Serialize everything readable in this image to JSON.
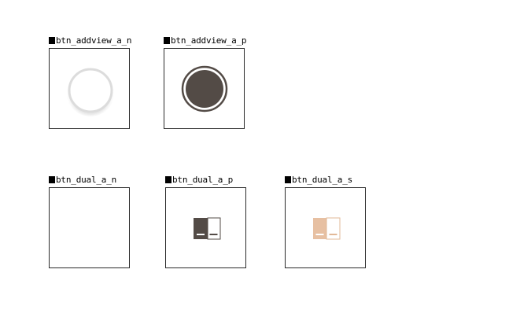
{
  "assets": [
    {
      "name": "btn_addview_a_n"
    },
    {
      "name": "btn_addview_a_p"
    },
    {
      "name": "btn_dual_a_n"
    },
    {
      "name": "btn_dual_a_p"
    },
    {
      "name": "btn_dual_a_s"
    }
  ],
  "colors": {
    "frame_border": "#2a2a2a",
    "dark_fill": "#534b46",
    "light_ring": "#dcdcdc",
    "peach_fill": "#e7c0a2",
    "peach_border": "#e2b897"
  }
}
